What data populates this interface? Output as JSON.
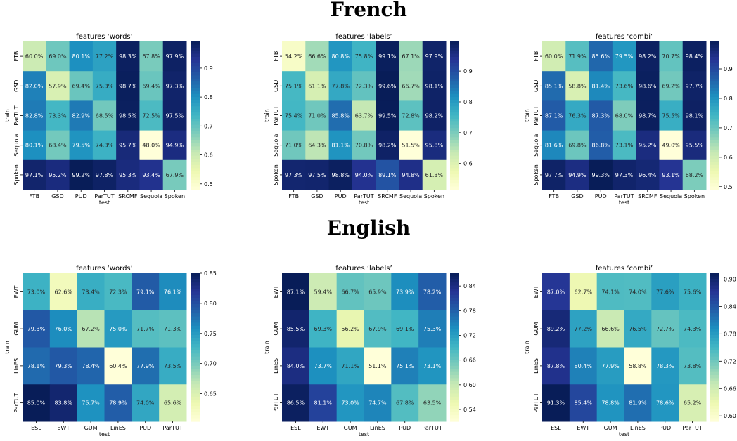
{
  "sections": [
    {
      "title": "French"
    },
    {
      "title": "English"
    }
  ],
  "chart_data": [
    {
      "type": "heatmap",
      "title": "features ‘words’",
      "xlabel": "test",
      "ylabel": "train",
      "x_categories": [
        "FTB",
        "GSD",
        "PUD",
        "ParTUT",
        "SRCMF",
        "Sequoia",
        "Spoken"
      ],
      "y_categories": [
        "FTB",
        "GSD",
        "ParTUT",
        "Sequoia",
        "Spoken"
      ],
      "values": [
        [
          0.6,
          0.69,
          0.801,
          0.772,
          0.983,
          0.678,
          0.979
        ],
        [
          0.82,
          0.579,
          0.694,
          0.753,
          0.987,
          0.694,
          0.973
        ],
        [
          0.828,
          0.733,
          0.829,
          0.685,
          0.985,
          0.725,
          0.975
        ],
        [
          0.801,
          0.684,
          0.795,
          0.743,
          0.957,
          0.48,
          0.949
        ],
        [
          0.971,
          0.952,
          0.992,
          0.978,
          0.953,
          0.934,
          0.679
        ]
      ],
      "cell_labels": [
        [
          "60.0%",
          "69.0%",
          "80.1%",
          "77.2%",
          "98.3%",
          "67.8%",
          "97.9%"
        ],
        [
          "82.0%",
          "57.9%",
          "69.4%",
          "75.3%",
          "98.7%",
          "69.4%",
          "97.3%"
        ],
        [
          "82.8%",
          "73.3%",
          "82.9%",
          "68.5%",
          "98.5%",
          "72.5%",
          "97.5%"
        ],
        [
          "80.1%",
          "68.4%",
          "79.5%",
          "74.3%",
          "95.7%",
          "48.0%",
          "94.9%"
        ],
        [
          "97.1%",
          "95.2%",
          "99.2%",
          "97.8%",
          "95.3%",
          "93.4%",
          "67.9%"
        ]
      ],
      "vmin": 0.48,
      "vmax": 0.992,
      "colorbar_ticks": [
        0.5,
        0.6,
        0.7,
        0.8,
        0.9
      ],
      "colorbar_tick_labels": [
        "0.5",
        "0.6",
        "0.7",
        "0.8",
        "0.9"
      ],
      "colormap": "YlGnBu"
    },
    {
      "type": "heatmap",
      "title": "features ‘labels’",
      "xlabel": "test",
      "ylabel": "train",
      "x_categories": [
        "FTB",
        "GSD",
        "PUD",
        "ParTUT",
        "SRCMF",
        "Sequoia",
        "Spoken"
      ],
      "y_categories": [
        "FTB",
        "GSD",
        "ParTUT",
        "Sequoia",
        "Spoken"
      ],
      "values": [
        [
          0.542,
          0.666,
          0.808,
          0.758,
          0.991,
          0.671,
          0.979
        ],
        [
          0.751,
          0.611,
          0.778,
          0.723,
          0.996,
          0.667,
          0.981
        ],
        [
          0.754,
          0.71,
          0.858,
          0.637,
          0.995,
          0.728,
          0.982
        ],
        [
          0.71,
          0.643,
          0.811,
          0.708,
          0.982,
          0.515,
          0.958
        ],
        [
          0.973,
          0.975,
          0.988,
          0.94,
          0.891,
          0.948,
          0.613
        ]
      ],
      "cell_labels": [
        [
          "54.2%",
          "66.6%",
          "80.8%",
          "75.8%",
          "99.1%",
          "67.1%",
          "97.9%"
        ],
        [
          "75.1%",
          "61.1%",
          "77.8%",
          "72.3%",
          "99.6%",
          "66.7%",
          "98.1%"
        ],
        [
          "75.4%",
          "71.0%",
          "85.8%",
          "63.7%",
          "99.5%",
          "72.8%",
          "98.2%"
        ],
        [
          "71.0%",
          "64.3%",
          "81.1%",
          "70.8%",
          "98.2%",
          "51.5%",
          "95.8%"
        ],
        [
          "97.3%",
          "97.5%",
          "98.8%",
          "94.0%",
          "89.1%",
          "94.8%",
          "61.3%"
        ]
      ],
      "vmin": 0.515,
      "vmax": 0.996,
      "colorbar_ticks": [
        0.6,
        0.7,
        0.8,
        0.9
      ],
      "colorbar_tick_labels": [
        "0.6",
        "0.7",
        "0.8",
        "0.9"
      ],
      "colormap": "YlGnBu"
    },
    {
      "type": "heatmap",
      "title": "features ‘combi’",
      "xlabel": "test",
      "ylabel": "train",
      "x_categories": [
        "FTB",
        "GSD",
        "PUD",
        "ParTUT",
        "SRCMF",
        "Sequoia",
        "Spoken"
      ],
      "y_categories": [
        "FTB",
        "GSD",
        "ParTUT",
        "Sequoia",
        "Spoken"
      ],
      "values": [
        [
          0.6,
          0.719,
          0.856,
          0.795,
          0.982,
          0.707,
          0.984
        ],
        [
          0.851,
          0.588,
          0.814,
          0.736,
          0.986,
          0.692,
          0.977
        ],
        [
          0.871,
          0.763,
          0.873,
          0.68,
          0.987,
          0.755,
          0.981
        ],
        [
          0.816,
          0.698,
          0.868,
          0.731,
          0.952,
          0.49,
          0.955
        ],
        [
          0.977,
          0.949,
          0.993,
          0.973,
          0.964,
          0.931,
          0.682
        ]
      ],
      "cell_labels": [
        [
          "60.0%",
          "71.9%",
          "85.6%",
          "79.5%",
          "98.2%",
          "70.7%",
          "98.4%"
        ],
        [
          "85.1%",
          "58.8%",
          "81.4%",
          "73.6%",
          "98.6%",
          "69.2%",
          "97.7%"
        ],
        [
          "87.1%",
          "76.3%",
          "87.3%",
          "68.0%",
          "98.7%",
          "75.5%",
          "98.1%"
        ],
        [
          "81.6%",
          "69.8%",
          "86.8%",
          "73.1%",
          "95.2%",
          "49.0%",
          "95.5%"
        ],
        [
          "97.7%",
          "94.9%",
          "99.3%",
          "97.3%",
          "96.4%",
          "93.1%",
          "68.2%"
        ]
      ],
      "vmin": 0.49,
      "vmax": 0.993,
      "colorbar_ticks": [
        0.5,
        0.6,
        0.7,
        0.8,
        0.9
      ],
      "colorbar_tick_labels": [
        "0.5",
        "0.6",
        "0.7",
        "0.8",
        "0.9"
      ],
      "colormap": "YlGnBu"
    },
    {
      "type": "heatmap",
      "title": "features ‘words’",
      "xlabel": "test",
      "ylabel": "train",
      "x_categories": [
        "ESL",
        "EWT",
        "GUM",
        "LinES",
        "PUD",
        "ParTUT"
      ],
      "y_categories": [
        "EWT",
        "GUM",
        "LinES",
        "ParTUT"
      ],
      "values": [
        [
          0.73,
          0.626,
          0.734,
          0.723,
          0.791,
          0.761
        ],
        [
          0.793,
          0.76,
          0.672,
          0.75,
          0.717,
          0.713
        ],
        [
          0.781,
          0.793,
          0.784,
          0.604,
          0.779,
          0.735
        ],
        [
          0.85,
          0.838,
          0.757,
          0.789,
          0.74,
          0.656
        ]
      ],
      "cell_labels": [
        [
          "73.0%",
          "62.6%",
          "73.4%",
          "72.3%",
          "79.1%",
          "76.1%"
        ],
        [
          "79.3%",
          "76.0%",
          "67.2%",
          "75.0%",
          "71.7%",
          "71.3%"
        ],
        [
          "78.1%",
          "79.3%",
          "78.4%",
          "60.4%",
          "77.9%",
          "73.5%"
        ],
        [
          "85.0%",
          "83.8%",
          "75.7%",
          "78.9%",
          "74.0%",
          "65.6%"
        ]
      ],
      "vmin": 0.604,
      "vmax": 0.85,
      "colorbar_ticks": [
        0.65,
        0.7,
        0.75,
        0.8,
        0.85
      ],
      "colorbar_tick_labels": [
        "0.65",
        "0.70",
        "0.75",
        "0.80",
        "0.85"
      ],
      "colormap": "YlGnBu"
    },
    {
      "type": "heatmap",
      "title": "features ‘labels’",
      "xlabel": "test",
      "ylabel": "train",
      "x_categories": [
        "ESL",
        "EWT",
        "GUM",
        "LinES",
        "PUD",
        "ParTUT"
      ],
      "y_categories": [
        "EWT",
        "GUM",
        "LinES",
        "ParTUT"
      ],
      "values": [
        [
          0.871,
          0.594,
          0.667,
          0.659,
          0.739,
          0.782
        ],
        [
          0.855,
          0.693,
          0.562,
          0.679,
          0.691,
          0.753
        ],
        [
          0.84,
          0.737,
          0.711,
          0.511,
          0.751,
          0.731
        ],
        [
          0.865,
          0.811,
          0.73,
          0.747,
          0.678,
          0.635
        ]
      ],
      "cell_labels": [
        [
          "87.1%",
          "59.4%",
          "66.7%",
          "65.9%",
          "73.9%",
          "78.2%"
        ],
        [
          "85.5%",
          "69.3%",
          "56.2%",
          "67.9%",
          "69.1%",
          "75.3%"
        ],
        [
          "84.0%",
          "73.7%",
          "71.1%",
          "51.1%",
          "75.1%",
          "73.1%"
        ],
        [
          "86.5%",
          "81.1%",
          "73.0%",
          "74.7%",
          "67.8%",
          "63.5%"
        ]
      ],
      "vmin": 0.511,
      "vmax": 0.871,
      "colorbar_ticks": [
        0.54,
        0.6,
        0.66,
        0.72,
        0.78,
        0.84
      ],
      "colorbar_tick_labels": [
        "0.54",
        "0.60",
        "0.66",
        "0.72",
        "0.78",
        "0.84"
      ],
      "colormap": "YlGnBu"
    },
    {
      "type": "heatmap",
      "title": "features ‘combi’",
      "xlabel": "test",
      "ylabel": "train",
      "x_categories": [
        "ESL",
        "EWT",
        "GUM",
        "LinES",
        "PUD",
        "ParTUT"
      ],
      "y_categories": [
        "EWT",
        "GUM",
        "LinES",
        "ParTUT"
      ],
      "values": [
        [
          0.87,
          0.627,
          0.741,
          0.74,
          0.776,
          0.756
        ],
        [
          0.892,
          0.772,
          0.666,
          0.765,
          0.727,
          0.743
        ],
        [
          0.878,
          0.804,
          0.779,
          0.588,
          0.783,
          0.738
        ],
        [
          0.913,
          0.854,
          0.788,
          0.819,
          0.786,
          0.652
        ]
      ],
      "cell_labels": [
        [
          "87.0%",
          "62.7%",
          "74.1%",
          "74.0%",
          "77.6%",
          "75.6%"
        ],
        [
          "89.2%",
          "77.2%",
          "66.6%",
          "76.5%",
          "72.7%",
          "74.3%"
        ],
        [
          "87.8%",
          "80.4%",
          "77.9%",
          "58.8%",
          "78.3%",
          "73.8%"
        ],
        [
          "91.3%",
          "85.4%",
          "78.8%",
          "81.9%",
          "78.6%",
          "65.2%"
        ]
      ],
      "vmin": 0.588,
      "vmax": 0.913,
      "colorbar_ticks": [
        0.6,
        0.66,
        0.72,
        0.78,
        0.84,
        0.9
      ],
      "colorbar_tick_labels": [
        "0.60",
        "0.66",
        "0.72",
        "0.78",
        "0.84",
        "0.90"
      ],
      "colormap": "YlGnBu"
    }
  ]
}
